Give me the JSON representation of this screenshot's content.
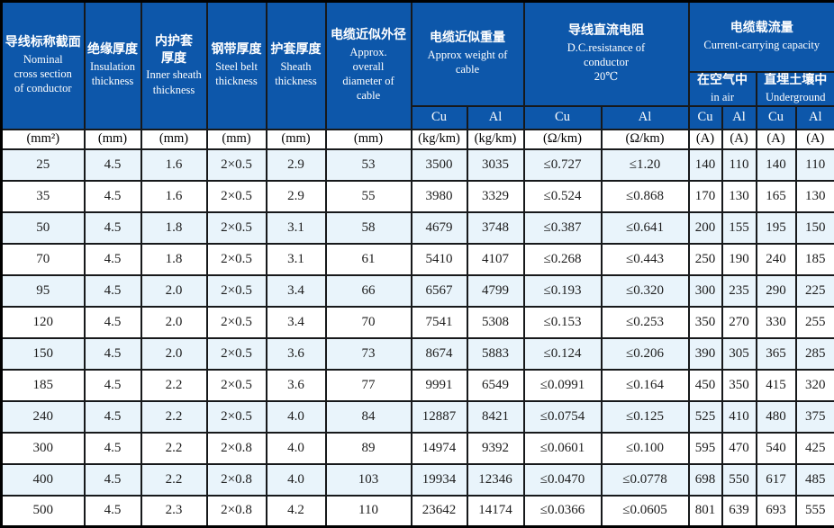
{
  "colors": {
    "header_blue": "#0d57aa",
    "alt_row_blue": "#e9f4fb",
    "border": "#17191b",
    "text": "#1d1d1d"
  },
  "header": {
    "columns": [
      {
        "zh": "导线标称截面",
        "en": "Nominal cross section of conductor"
      },
      {
        "zh": "绝缘厚度",
        "en": "Insulation thickness"
      },
      {
        "zh": "内护套厚度",
        "en": "Inner sheath thickness"
      },
      {
        "zh": "钢带厚度",
        "en": "Steel belt thickness"
      },
      {
        "zh": "护套厚度",
        "en": "Sheath thickness"
      },
      {
        "zh": "电缆近似外径",
        "en": "Approx. overall diameter of cable"
      }
    ],
    "weight": {
      "zh": "电缆近似重量",
      "en": "Approx weight of cable"
    },
    "resistance": {
      "zh": "导线直流电阻",
      "en": "D.C.resistance of conductor",
      "temp": "20℃"
    },
    "capacity": {
      "zh": "电缆载流量",
      "en": "Current-carrying capacity"
    },
    "in_air": {
      "zh": "在空气中",
      "en": "in air"
    },
    "underground": {
      "zh": "直埋土壤中",
      "en": "Underground"
    },
    "metal_row": [
      "Cu",
      "Al",
      "Cu",
      "Al",
      "Cu",
      "Al",
      "Cu",
      "Al"
    ]
  },
  "units": [
    "(mm²)",
    "(mm)",
    "(mm)",
    "(mm)",
    "(mm)",
    "(mm)",
    "(kg/km)",
    "(kg/km)",
    "(Ω/km)",
    "(Ω/km)",
    "(A)",
    "(A)",
    "(A)",
    "(A)"
  ],
  "rows": [
    [
      "25",
      "4.5",
      "1.6",
      "2×0.5",
      "2.9",
      "53",
      "3500",
      "3035",
      "≤0.727",
      "≤1.20",
      "140",
      "110",
      "140",
      "110"
    ],
    [
      "35",
      "4.5",
      "1.6",
      "2×0.5",
      "2.9",
      "55",
      "3980",
      "3329",
      "≤0.524",
      "≤0.868",
      "170",
      "130",
      "165",
      "130"
    ],
    [
      "50",
      "4.5",
      "1.8",
      "2×0.5",
      "3.1",
      "58",
      "4679",
      "3748",
      "≤0.387",
      "≤0.641",
      "200",
      "155",
      "195",
      "150"
    ],
    [
      "70",
      "4.5",
      "1.8",
      "2×0.5",
      "3.1",
      "61",
      "5410",
      "4107",
      "≤0.268",
      "≤0.443",
      "250",
      "190",
      "240",
      "185"
    ],
    [
      "95",
      "4.5",
      "2.0",
      "2×0.5",
      "3.4",
      "66",
      "6567",
      "4799",
      "≤0.193",
      "≤0.320",
      "300",
      "235",
      "290",
      "225"
    ],
    [
      "120",
      "4.5",
      "2.0",
      "2×0.5",
      "3.4",
      "70",
      "7541",
      "5308",
      "≤0.153",
      "≤0.253",
      "350",
      "270",
      "330",
      "255"
    ],
    [
      "150",
      "4.5",
      "2.0",
      "2×0.5",
      "3.6",
      "73",
      "8674",
      "5883",
      "≤0.124",
      "≤0.206",
      "390",
      "305",
      "365",
      "285"
    ],
    [
      "185",
      "4.5",
      "2.2",
      "2×0.5",
      "3.6",
      "77",
      "9991",
      "6549",
      "≤0.0991",
      "≤0.164",
      "450",
      "350",
      "415",
      "320"
    ],
    [
      "240",
      "4.5",
      "2.2",
      "2×0.5",
      "4.0",
      "84",
      "12887",
      "8421",
      "≤0.0754",
      "≤0.125",
      "525",
      "410",
      "480",
      "375"
    ],
    [
      "300",
      "4.5",
      "2.2",
      "2×0.8",
      "4.0",
      "89",
      "14974",
      "9392",
      "≤0.0601",
      "≤0.100",
      "595",
      "470",
      "540",
      "425"
    ],
    [
      "400",
      "4.5",
      "2.2",
      "2×0.8",
      "4.0",
      "103",
      "19934",
      "12346",
      "≤0.0470",
      "≤0.0778",
      "698",
      "550",
      "617",
      "485"
    ],
    [
      "500",
      "4.5",
      "2.3",
      "2×0.8",
      "4.2",
      "110",
      "23642",
      "14174",
      "≤0.0366",
      "≤0.0605",
      "801",
      "639",
      "693",
      "555"
    ]
  ]
}
